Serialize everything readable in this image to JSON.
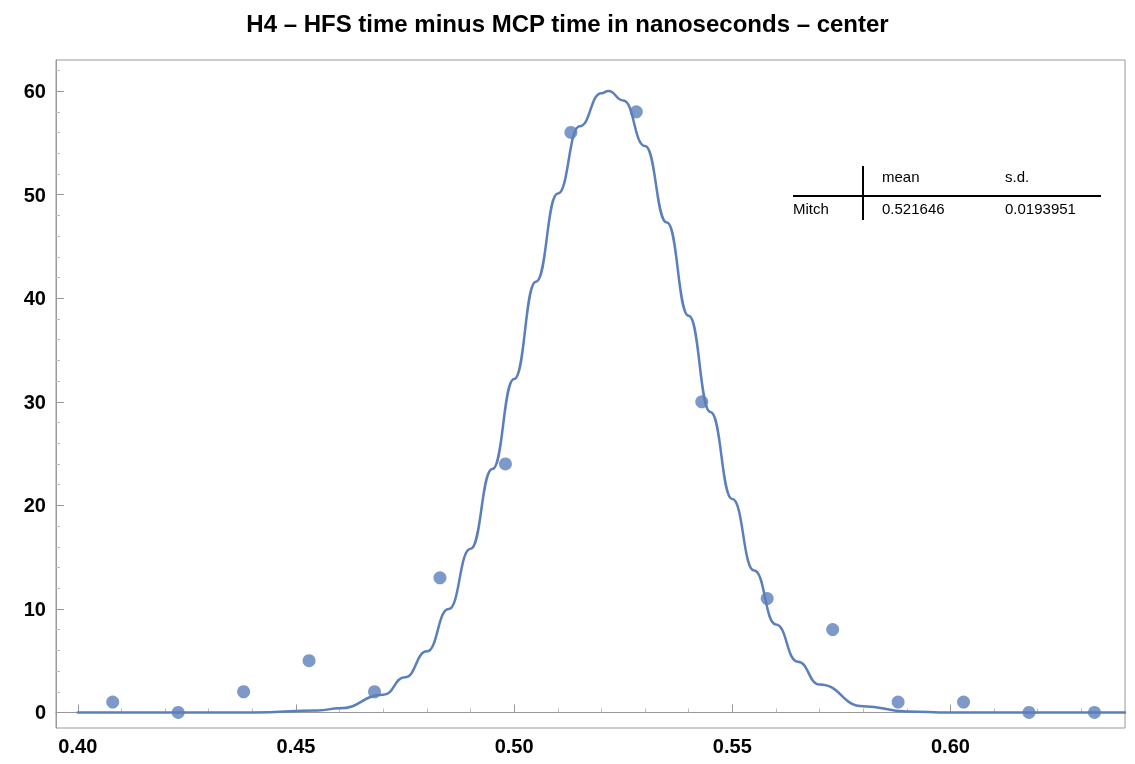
{
  "chart_data": {
    "type": "scatter",
    "title": "H4 – HFS time minus MCP time in nanoseconds – center",
    "xlim": [
      0.395,
      0.64
    ],
    "xticks": [
      {
        "value": 0.4,
        "label": "0.40"
      },
      {
        "value": 0.45,
        "label": "0.45"
      },
      {
        "value": 0.5,
        "label": "0.50"
      },
      {
        "value": 0.55,
        "label": "0.55"
      },
      {
        "value": 0.6,
        "label": "0.60"
      }
    ],
    "ylim": [
      -1.5,
      63
    ],
    "yticks": [
      0,
      10,
      20,
      30,
      40,
      50,
      60
    ],
    "annotations": [
      "mean",
      "s.d.",
      "Mitch",
      "0.521646",
      "0.0193951"
    ],
    "series": [
      {
        "color": "#5b7fbb",
        "marker": "circle",
        "x": [
          0.408,
          0.423,
          0.438,
          0.453,
          0.468,
          0.483,
          0.498,
          0.513,
          0.528,
          0.543,
          0.558,
          0.573,
          0.588,
          0.603,
          0.618,
          0.633
        ],
        "values": [
          1,
          0,
          2,
          5,
          2,
          13,
          24,
          56,
          58,
          30,
          11,
          8,
          1,
          1,
          0,
          0
        ]
      },
      {
        "type": "line",
        "color": "#5b7fbb",
        "marker": "none",
        "line_style": "solid",
        "x": [
          0.4,
          0.44,
          0.455,
          0.46,
          0.47,
          0.475,
          0.48,
          0.485,
          0.49,
          0.495,
          0.5,
          0.505,
          0.51,
          0.515,
          0.52,
          0.5216,
          0.525,
          0.53,
          0.535,
          0.54,
          0.545,
          0.55,
          0.555,
          0.56,
          0.565,
          0.57,
          0.58,
          0.59,
          0.6,
          0.64
        ],
        "values": [
          0,
          0,
          0.2,
          0.4,
          1.7,
          3.4,
          5.9,
          10,
          15.8,
          23.5,
          32.2,
          41.6,
          50.1,
          56.6,
          59.8,
          60,
          59.1,
          54.7,
          47.3,
          38.3,
          29,
          20.6,
          13.7,
          8.5,
          4.9,
          2.7,
          0.6,
          0.1,
          0,
          0
        ]
      }
    ]
  }
}
